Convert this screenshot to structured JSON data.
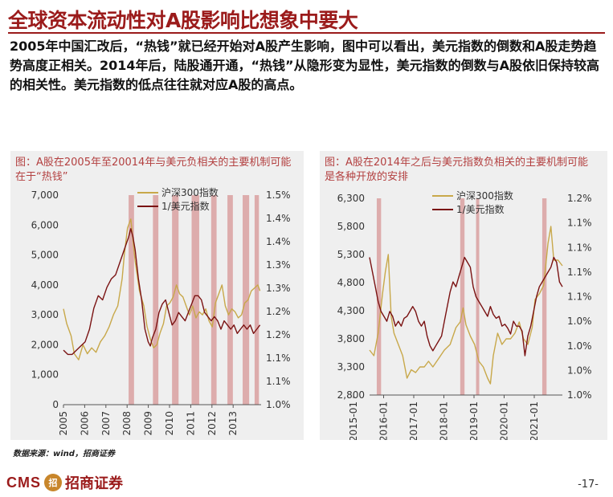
{
  "page": {
    "title": "全球资本流动性对A股影响比想象中要大",
    "body": "2005年中国汇改后，“热钱”就已经开始对A股产生影响，图中可以看出，美元指数的倒数和A股走势趋势高度正相关。2014年后，陆股通开通，“热钱”从隐形变为显性，美元指数的倒数与A股依旧保持较高的相关性。美元指数的低点往往就对应A股的高点。",
    "source": "数据来源：wind，招商证券",
    "brand_cms": "CMS",
    "brand_mark": "招",
    "brand_name": "招商证券",
    "page_number": "-17-"
  },
  "colors": {
    "title": "#9b1b1b",
    "hs300": "#c8a84a",
    "usd_inv": "#7a1212",
    "band": "#d9a0a0",
    "panel_bg": "#efefef"
  },
  "chart_data": [
    {
      "type": "line",
      "title": "图：A股在2005年至20014年与美元负相关的主要机制可能在于“热钱”",
      "x": [
        "2005",
        "2006",
        "2007",
        "2008",
        "2009",
        "2010",
        "2011",
        "2012",
        "2013"
      ],
      "x_range": [
        2005,
        2014.1
      ],
      "y_left_ticks": [
        "7,000",
        "6,000",
        "5,000",
        "4,000",
        "3,000",
        "2,000",
        "1,000",
        "0"
      ],
      "ylim_left": [
        0,
        7000
      ],
      "y_right_ticks": [
        "1.5%",
        "1.4%",
        "1.4%",
        "1.3%",
        "1.3%",
        "1.2%",
        "1.2%",
        "1.1%",
        "1.1%",
        "1.0%"
      ],
      "ylim_right": [
        1.0,
        1.5
      ],
      "legend": [
        "沪深300指数",
        "1/美元指数"
      ],
      "series": [
        {
          "name": "沪深300指数",
          "axis": "left",
          "x": [
            2005.0,
            2005.15,
            2005.35,
            2005.5,
            2005.7,
            2005.9,
            2006.1,
            2006.3,
            2006.5,
            2006.7,
            2006.9,
            2007.1,
            2007.3,
            2007.5,
            2007.7,
            2007.8,
            2007.95,
            2008.1,
            2008.3,
            2008.5,
            2008.7,
            2008.85,
            2009.0,
            2009.15,
            2009.3,
            2009.45,
            2009.6,
            2009.75,
            2009.9,
            2010.05,
            2010.2,
            2010.35,
            2010.5,
            2010.65,
            2010.8,
            2010.95,
            2011.1,
            2011.25,
            2011.4,
            2011.55,
            2011.7,
            2011.85,
            2012.0,
            2012.15,
            2012.3,
            2012.45,
            2012.6,
            2012.75,
            2012.9,
            2013.05,
            2013.2,
            2013.35,
            2013.5,
            2013.65,
            2013.8,
            2013.95,
            2014.05
          ],
          "values": [
            3200,
            2700,
            2300,
            1700,
            1500,
            2000,
            1700,
            1900,
            1750,
            2100,
            2300,
            2600,
            3000,
            3300,
            4200,
            5000,
            5900,
            6200,
            4800,
            3800,
            3300,
            2600,
            2200,
            1900,
            2000,
            2400,
            2700,
            3300,
            3400,
            3600,
            4000,
            3700,
            3600,
            3300,
            3000,
            3300,
            2900,
            3100,
            3000,
            3200,
            2800,
            2600,
            3400,
            3700,
            4000,
            3300,
            3000,
            3200,
            3100,
            2900,
            3000,
            3400,
            3500,
            3800,
            3900,
            4000,
            3800
          ]
        },
        {
          "name": "1/美元指数",
          "axis": "right",
          "x": [
            2005.0,
            2005.2,
            2005.4,
            2005.6,
            2005.8,
            2006.0,
            2006.2,
            2006.4,
            2006.6,
            2006.8,
            2007.0,
            2007.2,
            2007.4,
            2007.6,
            2007.8,
            2008.0,
            2008.1,
            2008.2,
            2008.3,
            2008.45,
            2008.6,
            2008.75,
            2008.9,
            2009.0,
            2009.1,
            2009.25,
            2009.4,
            2009.55,
            2009.7,
            2009.85,
            2010.0,
            2010.15,
            2010.3,
            2010.45,
            2010.6,
            2010.75,
            2010.9,
            2011.05,
            2011.2,
            2011.35,
            2011.5,
            2011.65,
            2011.8,
            2011.95,
            2012.1,
            2012.25,
            2012.4,
            2012.55,
            2012.7,
            2012.85,
            2013.0,
            2013.15,
            2013.3,
            2013.45,
            2013.6,
            2013.75,
            2013.9,
            2014.05
          ],
          "values": [
            1.13,
            1.12,
            1.12,
            1.13,
            1.14,
            1.15,
            1.18,
            1.23,
            1.26,
            1.25,
            1.28,
            1.3,
            1.31,
            1.34,
            1.37,
            1.4,
            1.42,
            1.4,
            1.37,
            1.3,
            1.25,
            1.18,
            1.15,
            1.14,
            1.16,
            1.18,
            1.22,
            1.24,
            1.25,
            1.22,
            1.19,
            1.2,
            1.22,
            1.21,
            1.2,
            1.22,
            1.24,
            1.26,
            1.26,
            1.25,
            1.22,
            1.21,
            1.2,
            1.21,
            1.2,
            1.18,
            1.2,
            1.19,
            1.18,
            1.19,
            1.17,
            1.18,
            1.19,
            1.18,
            1.19,
            1.17,
            1.18,
            1.19
          ]
        }
      ],
      "shaded_periods": [
        [
          2008.0,
          2008.25
        ],
        [
          2009.12,
          2009.37
        ],
        [
          2010.0,
          2010.3
        ],
        [
          2010.9,
          2011.25
        ],
        [
          2011.8,
          2012.05
        ],
        [
          2012.55,
          2012.8
        ],
        [
          2013.25,
          2013.55
        ],
        [
          2013.8,
          2014.0
        ]
      ]
    },
    {
      "type": "line",
      "title": "图：A股在2014年之后与美元指数负相关的主要机制可能是各种开放的安排",
      "x": [
        "2015-01",
        "2016-01",
        "2017-01",
        "2018-01",
        "2019-01",
        "2020-01",
        "2021-01"
      ],
      "x_range": [
        2014.8,
        2021.5
      ],
      "y_left_ticks": [
        "6,300",
        "5,800",
        "5,300",
        "4,800",
        "4,300",
        "3,800",
        "3,300",
        "2,800"
      ],
      "ylim_left": [
        2800,
        6300
      ],
      "y_right_ticks": [
        "1.2%",
        "1.1%",
        "1.1%",
        "1.1%",
        "1.1%",
        "1.0%",
        "1.0%",
        "1.0%",
        "1.0%"
      ],
      "ylim_right": [
        1.0,
        1.2
      ],
      "legend": [
        "沪深300指数",
        "1/美元指数"
      ],
      "series": [
        {
          "name": "沪深300指数",
          "axis": "left",
          "x": [
            2014.8,
            2014.95,
            2015.1,
            2015.25,
            2015.35,
            2015.45,
            2015.55,
            2015.65,
            2015.8,
            2015.95,
            2016.1,
            2016.25,
            2016.4,
            2016.55,
            2016.7,
            2016.85,
            2017.0,
            2017.2,
            2017.4,
            2017.6,
            2017.8,
            2017.95,
            2018.05,
            2018.15,
            2018.3,
            2018.45,
            2018.6,
            2018.75,
            2018.9,
            2019.0,
            2019.1,
            2019.25,
            2019.4,
            2019.55,
            2019.7,
            2019.85,
            2020.0,
            2020.15,
            2020.3,
            2020.45,
            2020.55,
            2020.7,
            2020.85,
            2021.0,
            2021.1,
            2021.2,
            2021.35,
            2021.5
          ],
          "values": [
            3600,
            3500,
            3900,
            4600,
            5000,
            5300,
            4200,
            3900,
            3700,
            3500,
            3100,
            3250,
            3200,
            3300,
            3300,
            3400,
            3300,
            3450,
            3600,
            3700,
            4000,
            4100,
            4350,
            4050,
            3850,
            3700,
            3400,
            3300,
            3100,
            3000,
            3500,
            3900,
            3700,
            3800,
            3800,
            3900,
            4100,
            3800,
            3700,
            4000,
            4500,
            4600,
            4750,
            5500,
            5800,
            5200,
            5200,
            5100
          ]
        },
        {
          "name": "1/美元指数",
          "axis": "right",
          "x": [
            2014.8,
            2014.9,
            2015.0,
            2015.1,
            2015.2,
            2015.3,
            2015.4,
            2015.5,
            2015.6,
            2015.7,
            2015.8,
            2015.9,
            2016.0,
            2016.1,
            2016.2,
            2016.3,
            2016.4,
            2016.5,
            2016.6,
            2016.7,
            2016.8,
            2016.9,
            2017.0,
            2017.1,
            2017.2,
            2017.3,
            2017.4,
            2017.5,
            2017.6,
            2017.7,
            2017.8,
            2017.9,
            2018.0,
            2018.1,
            2018.2,
            2018.3,
            2018.4,
            2018.5,
            2018.6,
            2018.7,
            2018.8,
            2018.9,
            2019.0,
            2019.1,
            2019.2,
            2019.3,
            2019.4,
            2019.5,
            2019.6,
            2019.7,
            2019.8,
            2019.9,
            2020.0,
            2020.1,
            2020.2,
            2020.3,
            2020.4,
            2020.5,
            2020.6,
            2020.7,
            2020.8,
            2020.9,
            2021.0,
            2021.1,
            2021.2,
            2021.3,
            2021.4,
            2021.5
          ],
          "values": [
            1.14,
            1.125,
            1.11,
            1.095,
            1.085,
            1.08,
            1.075,
            1.085,
            1.08,
            1.07,
            1.075,
            1.07,
            1.078,
            1.08,
            1.085,
            1.09,
            1.085,
            1.075,
            1.07,
            1.075,
            1.06,
            1.05,
            1.045,
            1.05,
            1.055,
            1.06,
            1.075,
            1.09,
            1.105,
            1.115,
            1.11,
            1.12,
            1.13,
            1.14,
            1.135,
            1.13,
            1.11,
            1.1,
            1.095,
            1.09,
            1.085,
            1.08,
            1.09,
            1.082,
            1.078,
            1.08,
            1.07,
            1.072,
            1.068,
            1.062,
            1.075,
            1.07,
            1.07,
            1.065,
            1.04,
            1.06,
            1.07,
            1.085,
            1.1,
            1.11,
            1.115,
            1.12,
            1.125,
            1.13,
            1.14,
            1.135,
            1.115,
            1.11
          ]
        }
      ],
      "shaded_periods": [
        [
          2015.05,
          2015.2
        ],
        [
          2017.95,
          2018.1
        ],
        [
          2018.5,
          2018.6
        ],
        [
          2020.8,
          2020.95
        ]
      ]
    }
  ]
}
